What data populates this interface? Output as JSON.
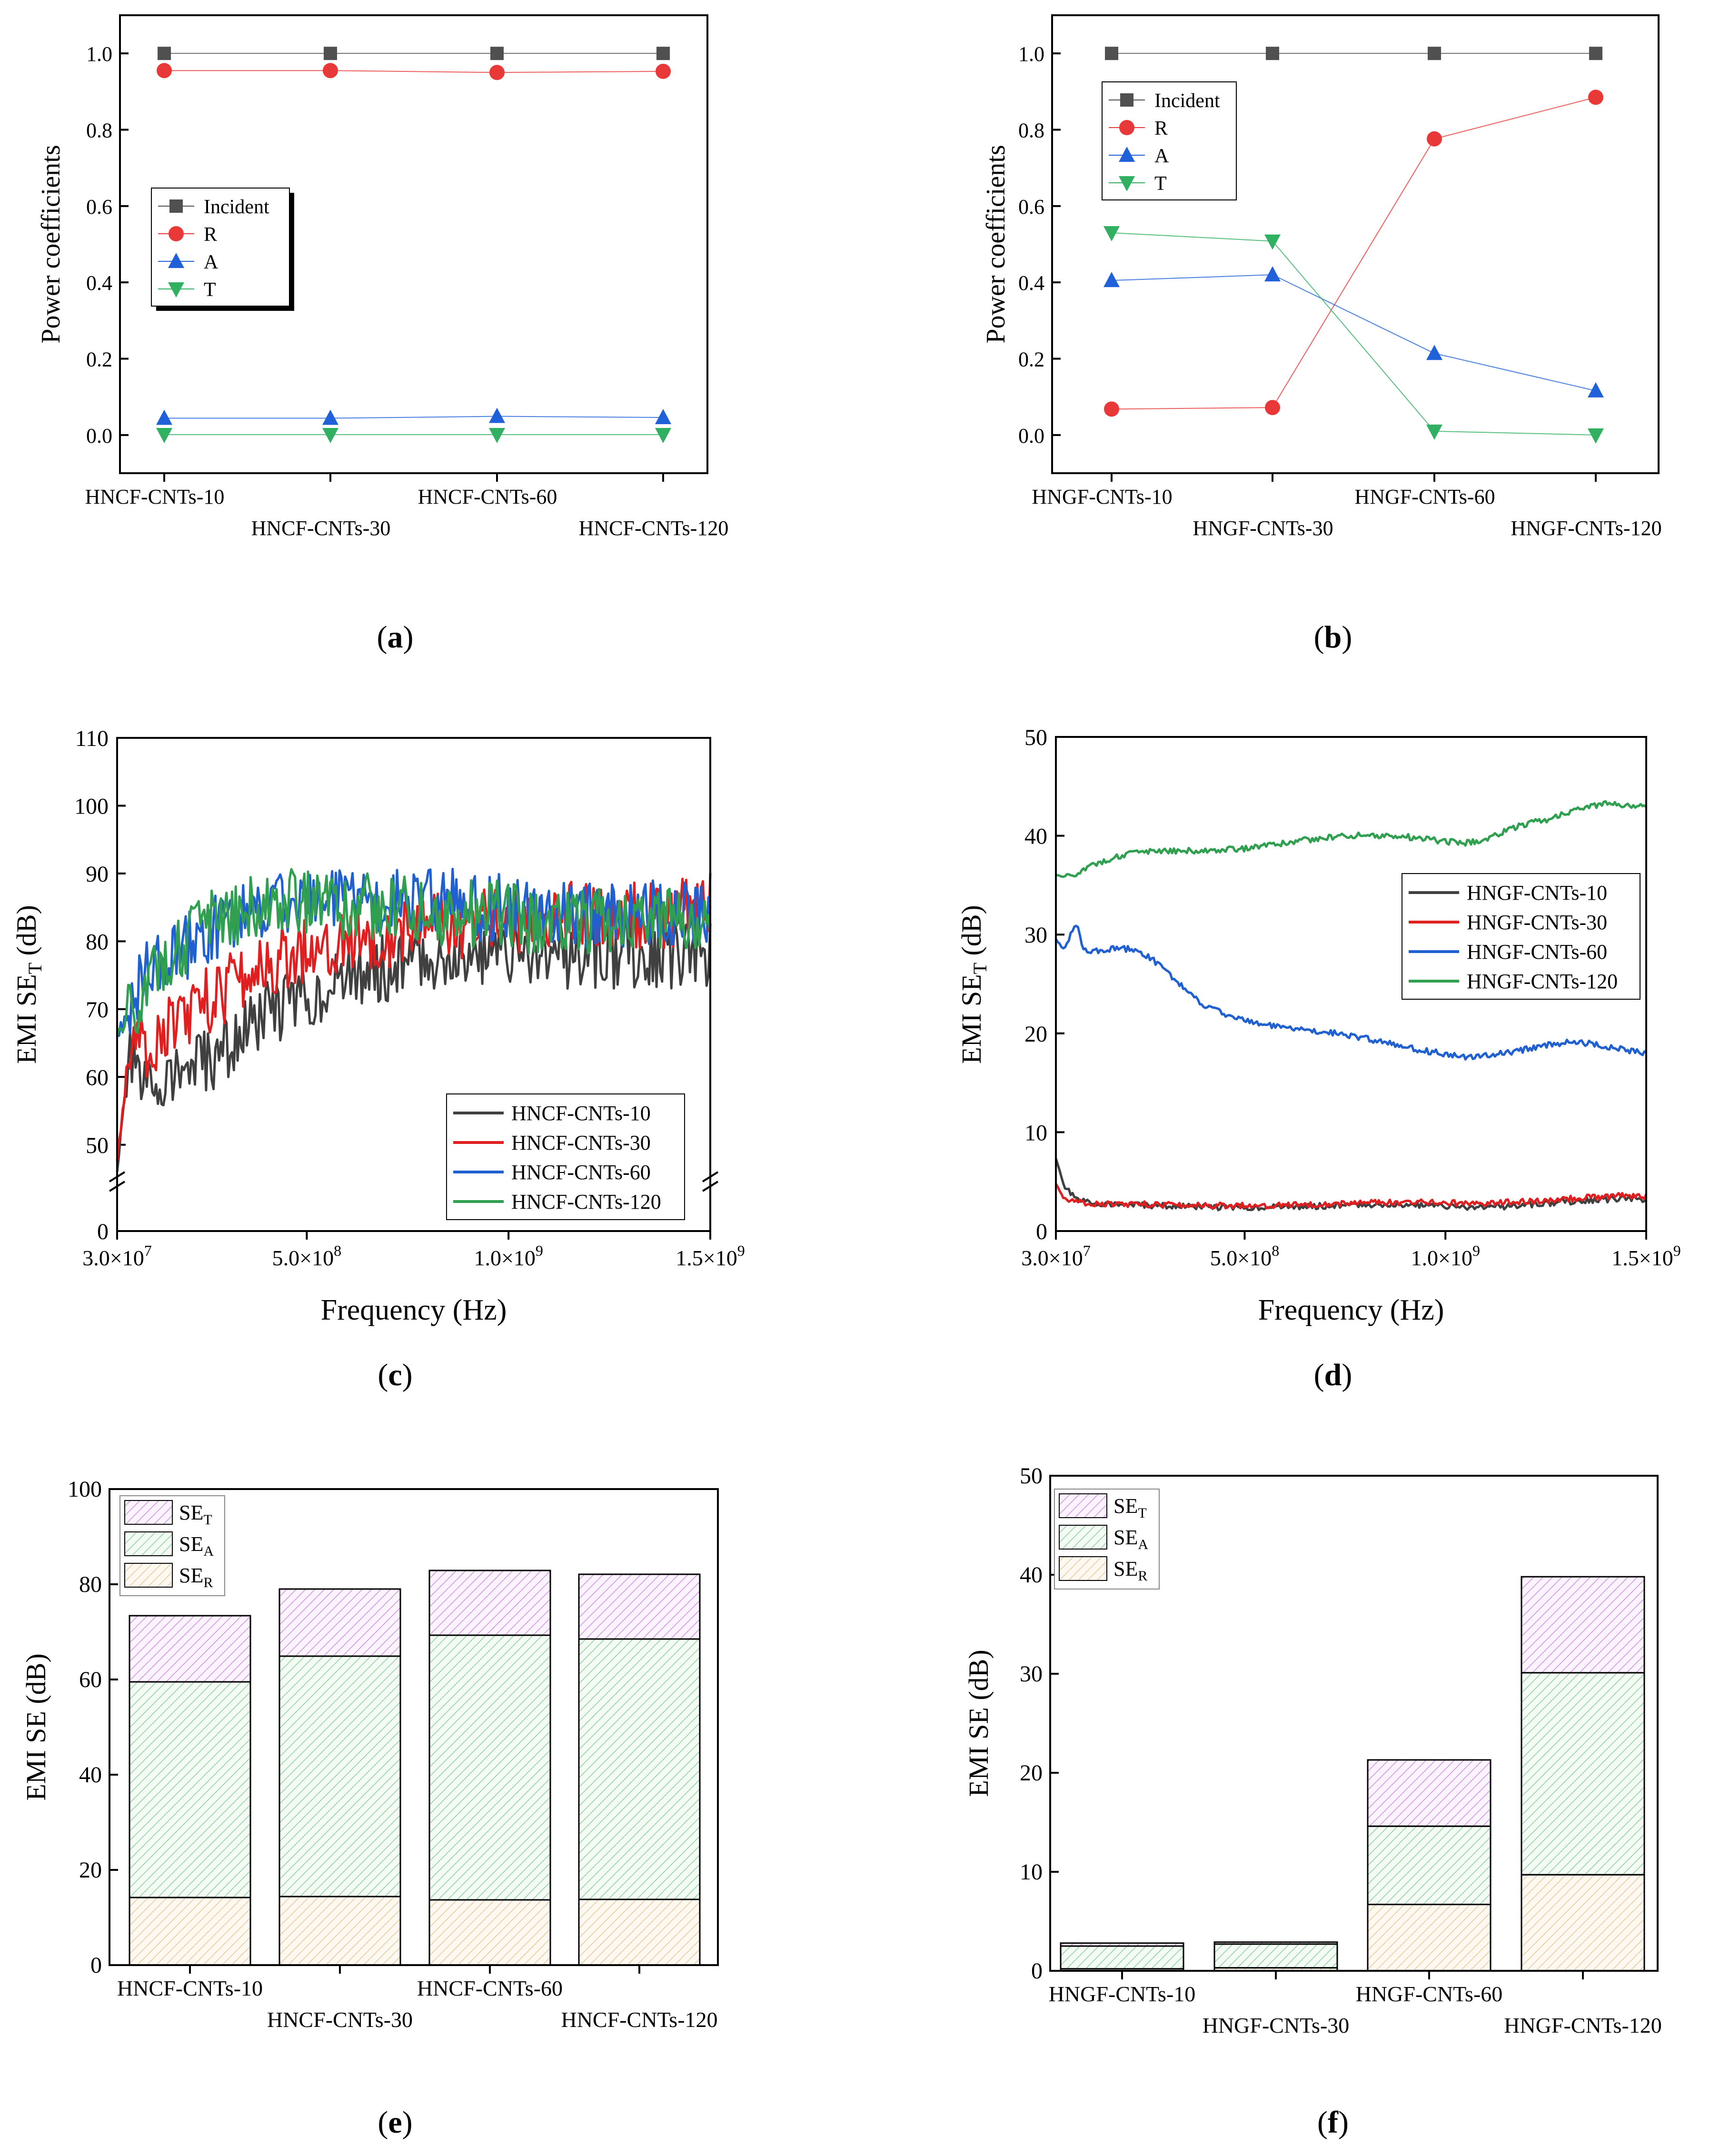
{
  "chart_data": [
    {
      "panel": "a",
      "panel_label": "a",
      "type": "line",
      "ylabel": "Power coefficients",
      "categories": [
        "HNCF-CNTs-10",
        "HNCF-CNTs-30",
        "HNCF-CNTs-60",
        "HNCF-CNTs-120"
      ],
      "ylim": [
        -0.1,
        1.1
      ],
      "yticks": [
        "0.0",
        "0.2",
        "0.4",
        "0.6",
        "0.8",
        "1.0"
      ],
      "yticks_values": [
        0,
        0.2,
        0.4,
        0.6,
        0.8,
        1.0
      ],
      "legend": "center-left",
      "series": [
        {
          "name": "Incident",
          "color": "#505050",
          "marker": "square",
          "values": [
            1.0,
            1.0,
            1.0,
            1.0
          ]
        },
        {
          "name": "R",
          "color": "#e83838",
          "marker": "circle",
          "values": [
            0.955,
            0.955,
            0.95,
            0.953
          ]
        },
        {
          "name": "A",
          "color": "#2060d8",
          "marker": "triangle-up",
          "values": [
            0.044,
            0.044,
            0.049,
            0.046
          ]
        },
        {
          "name": "T",
          "color": "#30b060",
          "marker": "triangle-down",
          "values": [
            0.001,
            0.001,
            0.001,
            0.001
          ]
        }
      ]
    },
    {
      "panel": "b",
      "panel_label": "b",
      "type": "line",
      "ylabel": "Power coefficients",
      "categories": [
        "HNGF-CNTs-10",
        "HNGF-CNTs-30",
        "HNGF-CNTs-60",
        "HNGF-CNTs-120"
      ],
      "ylim": [
        -0.1,
        1.1
      ],
      "yticks": [
        "0.0",
        "0.2",
        "0.4",
        "0.6",
        "0.8",
        "1.0"
      ],
      "yticks_values": [
        0,
        0.2,
        0.4,
        0.6,
        0.8,
        1.0
      ],
      "legend": "top-left",
      "series": [
        {
          "name": "Incident",
          "color": "#505050",
          "marker": "square",
          "values": [
            1.0,
            1.0,
            1.0,
            1.0
          ]
        },
        {
          "name": "R",
          "color": "#e83838",
          "marker": "circle",
          "values": [
            0.068,
            0.072,
            0.776,
            0.885
          ]
        },
        {
          "name": "A",
          "color": "#2060d8",
          "marker": "triangle-up",
          "values": [
            0.405,
            0.42,
            0.214,
            0.116
          ]
        },
        {
          "name": "T",
          "color": "#30b060",
          "marker": "triangle-down",
          "values": [
            0.53,
            0.508,
            0.01,
            0.0
          ]
        }
      ]
    },
    {
      "panel": "c",
      "panel_label": "c",
      "type": "line",
      "xlabel": "Frequency (Hz)",
      "ylabel": "EMI SE",
      "ylabel_sub": "T",
      "ylabel_tail": " (dB)",
      "xlim": [
        30000000,
        1500000000
      ],
      "xticks": [
        {
          "v": 30000000,
          "m": "3.0×10",
          "e": "7"
        },
        {
          "v": 500000000,
          "m": "5.0×10",
          "e": "8"
        },
        {
          "v": 1000000000,
          "m": "1.0×10",
          "e": "9"
        },
        {
          "v": 1500000000,
          "m": "1.5×10",
          "e": "9"
        }
      ],
      "ylim_upper": [
        45,
        110
      ],
      "ylim_lower": [
        0,
        5
      ],
      "yticks": [
        "0",
        "50",
        "60",
        "70",
        "80",
        "90",
        "100",
        "110"
      ],
      "yticks_values": [
        0,
        50,
        60,
        70,
        80,
        90,
        100,
        110
      ],
      "axis_break": true,
      "legend": "bottom-right",
      "series": [
        {
          "name": "HNCF-CNTs-10",
          "color": "#404040",
          "x": [
            30000000,
            60000000,
            100000000,
            150000000,
            200000000,
            250000000,
            300000000,
            350000000,
            400000000,
            450000000,
            500000000,
            550000000,
            600000000,
            650000000,
            700000000,
            750000000,
            800000000,
            850000000,
            900000000,
            950000000,
            1000000000,
            1050000000,
            1100000000,
            1150000000,
            1200000000,
            1250000000,
            1300000000,
            1350000000,
            1400000000,
            1450000000,
            1500000000
          ],
          "values": [
            46,
            62,
            58,
            60,
            61,
            62,
            64,
            67,
            69,
            71,
            72,
            73,
            74,
            76,
            76,
            77,
            77,
            78,
            78,
            78,
            78,
            78,
            78,
            78,
            78,
            78,
            78,
            78,
            78,
            78,
            78
          ]
        },
        {
          "name": "HNCF-CNTs-30",
          "color": "#e02020",
          "x": [
            30000000,
            60000000,
            100000000,
            150000000,
            200000000,
            250000000,
            300000000,
            350000000,
            400000000,
            450000000,
            500000000,
            550000000,
            600000000,
            650000000,
            700000000,
            750000000,
            800000000,
            850000000,
            900000000,
            950000000,
            1000000000,
            1050000000,
            1100000000,
            1150000000,
            1200000000,
            1250000000,
            1300000000,
            1350000000,
            1400000000,
            1450000000,
            1500000000
          ],
          "values": [
            48,
            64,
            64,
            67,
            69,
            71,
            73,
            75,
            76,
            78,
            79,
            80,
            80,
            81,
            81,
            82,
            82,
            83,
            82,
            83,
            83,
            83,
            84,
            84,
            84,
            84,
            84,
            84,
            84,
            85,
            86
          ]
        },
        {
          "name": "HNCF-CNTs-60",
          "color": "#2060d0",
          "x": [
            30000000,
            60000000,
            100000000,
            150000000,
            200000000,
            250000000,
            300000000,
            350000000,
            400000000,
            450000000,
            500000000,
            550000000,
            600000000,
            650000000,
            700000000,
            750000000,
            800000000,
            850000000,
            900000000,
            950000000,
            1000000000,
            1050000000,
            1100000000,
            1150000000,
            1200000000,
            1250000000,
            1300000000,
            1350000000,
            1400000000,
            1450000000,
            1500000000
          ],
          "values": [
            66,
            70,
            75,
            77,
            79,
            81,
            83,
            84,
            85,
            86,
            86,
            86,
            86,
            86,
            86,
            86,
            86,
            86,
            85,
            85,
            85,
            85,
            84,
            84,
            84,
            84,
            84,
            84,
            84,
            84,
            84
          ]
        },
        {
          "name": "HNCF-CNTs-120",
          "color": "#30a050",
          "x": [
            30000000,
            60000000,
            100000000,
            150000000,
            200000000,
            250000000,
            300000000,
            350000000,
            400000000,
            450000000,
            500000000,
            550000000,
            600000000,
            650000000,
            700000000,
            750000000,
            800000000,
            850000000,
            900000000,
            950000000,
            1000000000,
            1050000000,
            1100000000,
            1150000000,
            1200000000,
            1250000000,
            1300000000,
            1350000000,
            1400000000,
            1450000000,
            1500000000
          ],
          "values": [
            66,
            69,
            73,
            78,
            80,
            82,
            84,
            85,
            86,
            86,
            86,
            86,
            85,
            85,
            85,
            85,
            84,
            84,
            84,
            84,
            84,
            83,
            83,
            83,
            83,
            83,
            83,
            83,
            83,
            83,
            83
          ]
        }
      ]
    },
    {
      "panel": "d",
      "panel_label": "d",
      "type": "line",
      "xlabel": "Frequency (Hz)",
      "ylabel": "EMI SE",
      "ylabel_sub": "T",
      "ylabel_tail": " (dB)",
      "xlim": [
        30000000,
        1500000000
      ],
      "xticks": [
        {
          "v": 30000000,
          "m": "3.0×10",
          "e": "7"
        },
        {
          "v": 500000000,
          "m": "5.0×10",
          "e": "8"
        },
        {
          "v": 1000000000,
          "m": "1.0×10",
          "e": "9"
        },
        {
          "v": 1500000000,
          "m": "1.5×10",
          "e": "9"
        }
      ],
      "ylim": [
        0,
        50
      ],
      "yticks": [
        "0",
        "10",
        "20",
        "30",
        "40",
        "50"
      ],
      "yticks_values": [
        0,
        10,
        20,
        30,
        40,
        50
      ],
      "legend": "center-right",
      "series": [
        {
          "name": "HNGF-CNTs-10",
          "color": "#404040",
          "x": [
            30000000,
            50000000,
            80000000,
            120000000,
            180000000,
            250000000,
            350000000,
            450000000,
            550000000,
            650000000,
            750000000,
            850000000,
            950000000,
            1050000000,
            1150000000,
            1250000000,
            1350000000,
            1450000000,
            1500000000
          ],
          "values": [
            7.4,
            4.5,
            3.2,
            2.8,
            2.7,
            2.6,
            2.5,
            2.4,
            2.4,
            2.5,
            2.6,
            2.7,
            2.6,
            2.4,
            2.5,
            2.8,
            3.1,
            3.3,
            3.2
          ]
        },
        {
          "name": "HNGF-CNTs-30",
          "color": "#e02020",
          "x": [
            30000000,
            50000000,
            80000000,
            120000000,
            180000000,
            250000000,
            350000000,
            450000000,
            550000000,
            650000000,
            750000000,
            850000000,
            950000000,
            1050000000,
            1150000000,
            1250000000,
            1350000000,
            1450000000,
            1500000000
          ],
          "values": [
            4.8,
            3.3,
            2.9,
            2.8,
            2.7,
            2.7,
            2.6,
            2.6,
            2.6,
            2.7,
            2.8,
            2.9,
            2.9,
            2.8,
            2.9,
            3.1,
            3.4,
            3.6,
            3.5
          ]
        },
        {
          "name": "HNGF-CNTs-60",
          "color": "#2060d0",
          "x": [
            30000000,
            50000000,
            80000000,
            100000000,
            130000000,
            180000000,
            220000000,
            260000000,
            300000000,
            350000000,
            400000000,
            450000000,
            500000000,
            600000000,
            700000000,
            800000000,
            900000000,
            1000000000,
            1050000000,
            1100000000,
            1150000000,
            1200000000,
            1250000000,
            1300000000,
            1350000000,
            1400000000,
            1450000000,
            1500000000
          ],
          "values": [
            29.5,
            28.5,
            31.2,
            28.3,
            28.3,
            28.6,
            28.5,
            27.8,
            26.5,
            24.5,
            22.8,
            22.0,
            21.3,
            20.5,
            20.2,
            19.5,
            18.6,
            17.9,
            17.6,
            17.8,
            18.0,
            18.4,
            18.8,
            19.1,
            19.0,
            18.7,
            18.3,
            18.0
          ]
        },
        {
          "name": "HNGF-CNTs-120",
          "color": "#30a050",
          "x": [
            30000000,
            60000000,
            100000000,
            150000000,
            200000000,
            300000000,
            400000000,
            500000000,
            600000000,
            700000000,
            800000000,
            900000000,
            1000000000,
            1050000000,
            1100000000,
            1150000000,
            1200000000,
            1250000000,
            1300000000,
            1350000000,
            1400000000,
            1450000000,
            1500000000
          ],
          "values": [
            36.0,
            35.8,
            36.6,
            37.5,
            38.1,
            38.5,
            38.5,
            38.7,
            39.3,
            39.8,
            40.1,
            39.9,
            39.4,
            39.3,
            39.6,
            40.5,
            41.2,
            41.6,
            42.3,
            42.9,
            43.2,
            43.1,
            43.0
          ]
        }
      ]
    },
    {
      "panel": "e",
      "panel_label": "e",
      "type": "bar",
      "ylabel": "EMI SE (dB)",
      "categories": [
        "HNCF-CNTs-10",
        "HNCF-CNTs-30",
        "HNCF-CNTs-60",
        "HNCF-CNTs-120"
      ],
      "ylim": [
        0,
        100
      ],
      "yticks": [
        "0",
        "20",
        "40",
        "60",
        "80",
        "100"
      ],
      "yticks_values": [
        0,
        20,
        40,
        60,
        80,
        100
      ],
      "legend": "top-left",
      "legend_entries": [
        {
          "base": "SE",
          "sub": "T"
        },
        {
          "base": "SE",
          "sub": "A"
        },
        {
          "base": "SE",
          "sub": "R"
        }
      ],
      "stack_colors": {
        "SE_R": "#f5e3c8",
        "SE_A": "#8ccf9a",
        "SE_T": "#d090e0"
      },
      "series": [
        {
          "name": "SE_R",
          "values": [
            14.2,
            14.4,
            13.7,
            13.8
          ]
        },
        {
          "name": "SE_A",
          "values": [
            45.3,
            50.5,
            55.6,
            54.7
          ]
        },
        {
          "name": "SE_T",
          "values": [
            73.4,
            79.0,
            82.9,
            82.1
          ]
        }
      ]
    },
    {
      "panel": "f",
      "panel_label": "f",
      "type": "bar",
      "ylabel": "EMI SE (dB)",
      "categories": [
        "HNGF-CNTs-10",
        "HNGF-CNTs-30",
        "HNGF-CNTs-60",
        "HNGF-CNTs-120"
      ],
      "ylim": [
        0,
        50
      ],
      "yticks": [
        "0",
        "10",
        "20",
        "30",
        "40",
        "50"
      ],
      "yticks_values": [
        0,
        10,
        20,
        30,
        40,
        50
      ],
      "legend": "top-left",
      "legend_entries": [
        {
          "base": "SE",
          "sub": "T"
        },
        {
          "base": "SE",
          "sub": "A"
        },
        {
          "base": "SE",
          "sub": "R"
        }
      ],
      "stack_colors": {
        "SE_R": "#f5e3c8",
        "SE_A": "#8ccf9a",
        "SE_T": "#d090e0"
      },
      "series": [
        {
          "name": "SE_R",
          "values": [
            0.2,
            0.3,
            6.7,
            9.7
          ]
        },
        {
          "name": "SE_A",
          "values": [
            2.3,
            2.4,
            7.9,
            20.4
          ]
        },
        {
          "name": "SE_T",
          "values": [
            2.8,
            2.9,
            21.3,
            39.8
          ]
        }
      ]
    }
  ]
}
